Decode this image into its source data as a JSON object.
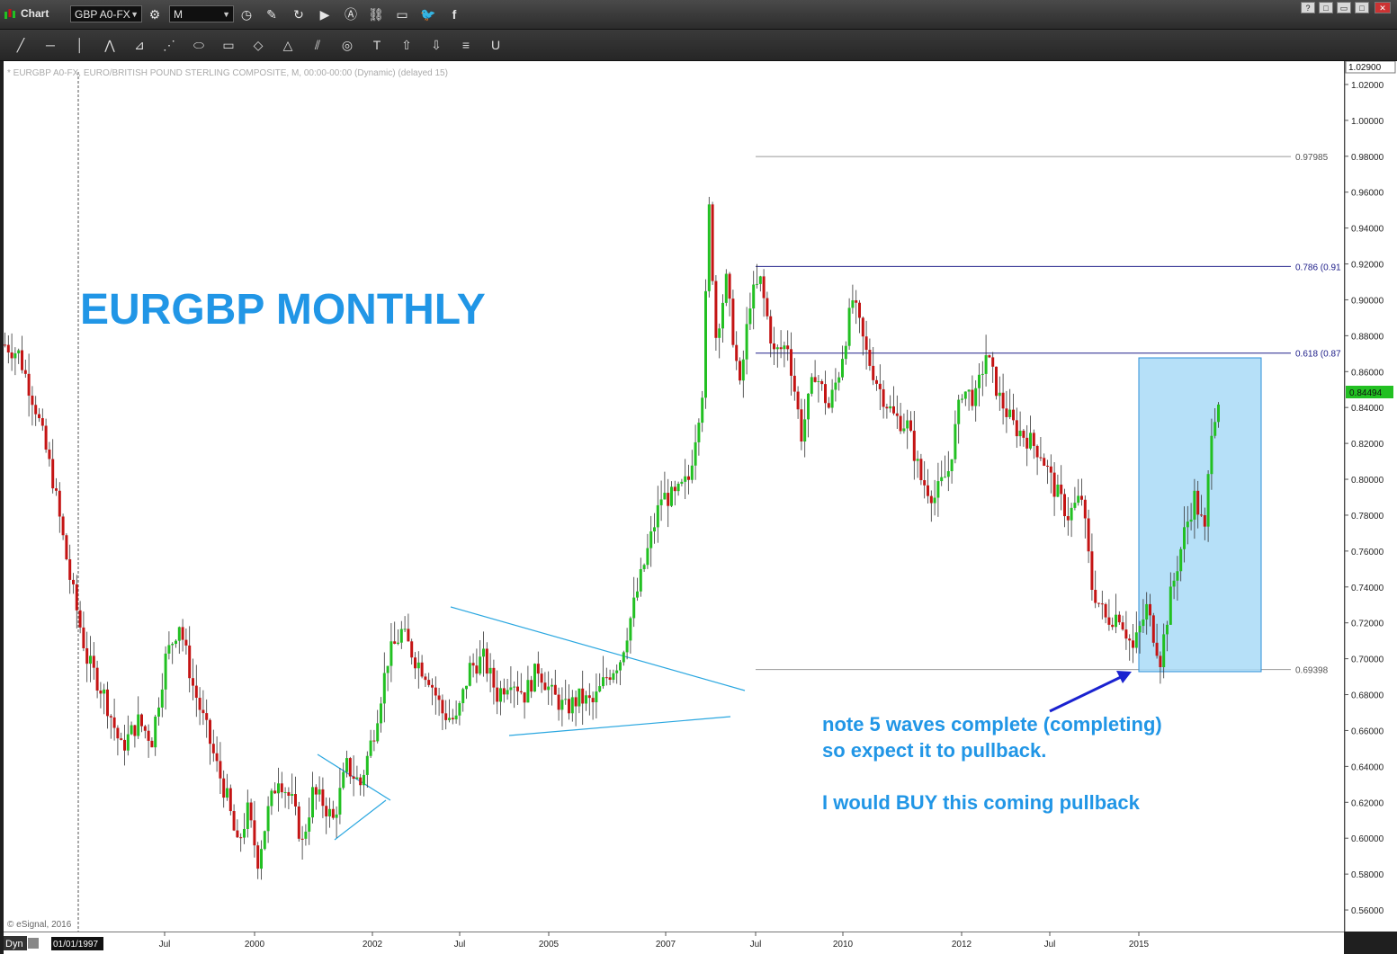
{
  "window": {
    "title": "Chart",
    "symbol": "GBP A0-FX",
    "interval": "M",
    "buttons": [
      "?",
      "□",
      "▭",
      "□",
      "✕"
    ]
  },
  "toolbar_icons": [
    "trend-line",
    "horizontal-line",
    "vertical-line",
    "pitchfork",
    "fan",
    "gann",
    "ellipse",
    "rectangle",
    "eraser",
    "triangle",
    "parallel",
    "cycle",
    "text",
    "arrow-up",
    "arrow-down",
    "fibonacci",
    "magnet"
  ],
  "chart_info": {
    "header": "* EURGBP A0-FX, EURO/BRITISH POUND STERLING COMPOSITE, M, 00:00-00:00 (Dynamic) (delayed 15)",
    "watermark": "© eSignal, 2016",
    "title": "EURGBP MONTHLY",
    "note_line1": "note 5 waves complete (completing)",
    "note_line2": "so expect it to pullback.",
    "note_line3": "I would BUY this coming pullback",
    "last_price": "0.84494",
    "top_price": "1.02900",
    "dyn_label": "Dyn",
    "start_date": "01/01/1997"
  },
  "chart_data": {
    "type": "candlestick",
    "title": "EURGBP MONTHLY",
    "ylim": [
      0.548,
      1.033
    ],
    "y_ticks": [
      "0.56000",
      "0.58000",
      "0.60000",
      "0.62000",
      "0.64000",
      "0.66000",
      "0.68000",
      "0.70000",
      "0.72000",
      "0.74000",
      "0.76000",
      "0.78000",
      "0.80000",
      "0.82000",
      "0.84000",
      "0.86000",
      "0.88000",
      "0.90000",
      "0.92000",
      "0.94000",
      "0.96000",
      "0.98000",
      "1.00000",
      "1.02000"
    ],
    "x_ticks": [
      "Jul",
      "2000",
      "2002",
      "Jul",
      "2005",
      "2007",
      "Jul",
      "2010",
      "2012",
      "Jul",
      "2015"
    ],
    "fib_levels": [
      {
        "label": "0.97985",
        "value": 0.97985,
        "color": "#999999"
      },
      {
        "label": "0.786 (0.91",
        "value": 0.9186,
        "color": "#20208a"
      },
      {
        "label": "0.618 (0.87",
        "value": 0.8703,
        "color": "#20208a"
      },
      {
        "label": "0.69398",
        "value": 0.69398,
        "color": "#999999"
      }
    ],
    "colors": {
      "up": "#22c022",
      "down": "#c41414",
      "trendline": "#2aa7e0",
      "box": "#a9daf7",
      "annotation": "#2196e6",
      "arrow": "#1a22d0",
      "last_price_bg": "#22c022"
    },
    "anchors": [
      {
        "t": 0,
        "p": 0.875
      },
      {
        "t": 4,
        "p": 0.87
      },
      {
        "t": 9,
        "p": 0.84
      },
      {
        "t": 14,
        "p": 0.8
      },
      {
        "t": 19,
        "p": 0.745
      },
      {
        "t": 24,
        "p": 0.7
      },
      {
        "t": 29,
        "p": 0.68
      },
      {
        "t": 34,
        "p": 0.65
      },
      {
        "t": 39,
        "p": 0.665
      },
      {
        "t": 43,
        "p": 0.655
      },
      {
        "t": 47,
        "p": 0.7
      },
      {
        "t": 51,
        "p": 0.72
      },
      {
        "t": 55,
        "p": 0.685
      },
      {
        "t": 59,
        "p": 0.66
      },
      {
        "t": 62,
        "p": 0.64
      },
      {
        "t": 65,
        "p": 0.622
      },
      {
        "t": 68,
        "p": 0.595
      },
      {
        "t": 71,
        "p": 0.615
      },
      {
        "t": 74,
        "p": 0.588
      },
      {
        "t": 77,
        "p": 0.615
      },
      {
        "t": 80,
        "p": 0.635
      },
      {
        "t": 84,
        "p": 0.62
      },
      {
        "t": 87,
        "p": 0.597
      },
      {
        "t": 90,
        "p": 0.625
      },
      {
        "t": 93,
        "p": 0.62
      },
      {
        "t": 96,
        "p": 0.61
      },
      {
        "t": 100,
        "p": 0.64
      },
      {
        "t": 104,
        "p": 0.63
      },
      {
        "t": 108,
        "p": 0.66
      },
      {
        "t": 112,
        "p": 0.7
      },
      {
        "t": 116,
        "p": 0.715
      },
      {
        "t": 120,
        "p": 0.7
      },
      {
        "t": 124,
        "p": 0.69
      },
      {
        "t": 128,
        "p": 0.67
      },
      {
        "t": 132,
        "p": 0.665
      },
      {
        "t": 136,
        "p": 0.695
      },
      {
        "t": 140,
        "p": 0.7
      },
      {
        "t": 144,
        "p": 0.68
      },
      {
        "t": 148,
        "p": 0.69
      },
      {
        "t": 152,
        "p": 0.68
      },
      {
        "t": 156,
        "p": 0.695
      },
      {
        "t": 160,
        "p": 0.68
      },
      {
        "t": 164,
        "p": 0.672
      },
      {
        "t": 168,
        "p": 0.678
      },
      {
        "t": 172,
        "p": 0.675
      },
      {
        "t": 176,
        "p": 0.69
      },
      {
        "t": 180,
        "p": 0.7
      },
      {
        "t": 184,
        "p": 0.73
      },
      {
        "t": 188,
        "p": 0.76
      },
      {
        "t": 192,
        "p": 0.79
      },
      {
        "t": 196,
        "p": 0.79
      },
      {
        "t": 200,
        "p": 0.8
      },
      {
        "t": 204,
        "p": 0.85
      },
      {
        "t": 206,
        "p": 0.95
      },
      {
        "t": 208,
        "p": 0.88
      },
      {
        "t": 211,
        "p": 0.91
      },
      {
        "t": 215,
        "p": 0.85
      },
      {
        "t": 218,
        "p": 0.9
      },
      {
        "t": 221,
        "p": 0.91
      },
      {
        "t": 225,
        "p": 0.87
      },
      {
        "t": 229,
        "p": 0.875
      },
      {
        "t": 233,
        "p": 0.825
      },
      {
        "t": 237,
        "p": 0.86
      },
      {
        "t": 241,
        "p": 0.84
      },
      {
        "t": 244,
        "p": 0.86
      },
      {
        "t": 248,
        "p": 0.9
      },
      {
        "t": 252,
        "p": 0.87
      },
      {
        "t": 256,
        "p": 0.85
      },
      {
        "t": 260,
        "p": 0.835
      },
      {
        "t": 264,
        "p": 0.83
      },
      {
        "t": 268,
        "p": 0.8
      },
      {
        "t": 272,
        "p": 0.79
      },
      {
        "t": 276,
        "p": 0.805
      },
      {
        "t": 280,
        "p": 0.85
      },
      {
        "t": 284,
        "p": 0.845
      },
      {
        "t": 287,
        "p": 0.87
      },
      {
        "t": 291,
        "p": 0.845
      },
      {
        "t": 295,
        "p": 0.83
      },
      {
        "t": 299,
        "p": 0.823
      },
      {
        "t": 303,
        "p": 0.815
      },
      {
        "t": 307,
        "p": 0.795
      },
      {
        "t": 311,
        "p": 0.78
      },
      {
        "t": 315,
        "p": 0.79
      },
      {
        "t": 318,
        "p": 0.74
      },
      {
        "t": 322,
        "p": 0.722
      },
      {
        "t": 326,
        "p": 0.725
      },
      {
        "t": 330,
        "p": 0.705
      },
      {
        "t": 334,
        "p": 0.728
      },
      {
        "t": 338,
        "p": 0.7
      },
      {
        "t": 341,
        "p": 0.735
      },
      {
        "t": 345,
        "p": 0.77
      },
      {
        "t": 348,
        "p": 0.79
      },
      {
        "t": 351,
        "p": 0.77
      },
      {
        "t": 353,
        "p": 0.83
      },
      {
        "t": 355,
        "p": 0.845
      }
    ]
  }
}
